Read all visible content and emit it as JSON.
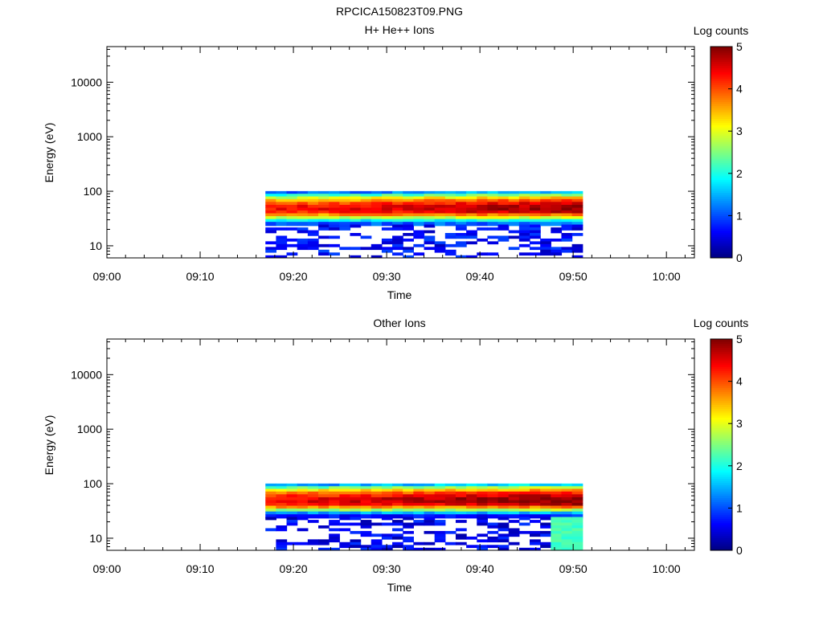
{
  "figure_title": "RPCICA150823T09.PNG",
  "colors": {
    "colormap": [
      "#00007f",
      "#0000ff",
      "#007fff",
      "#00ffff",
      "#7fff7f",
      "#ffff00",
      "#ff7f00",
      "#ff0000",
      "#7f0000"
    ]
  },
  "chart_data": [
    {
      "type": "heatmap",
      "title": "H+ He++ Ions",
      "xlabel": "Time",
      "ylabel": "Energy (eV)",
      "x_ticks": [
        "09:00",
        "09:10",
        "09:20",
        "09:30",
        "09:40",
        "09:50",
        "10:00"
      ],
      "y_ticks": [
        "10",
        "100",
        "1000",
        "10000"
      ],
      "y_scale": "log",
      "y_range_eV": [
        6,
        45000
      ],
      "x_range": [
        "09:00",
        "10:03"
      ],
      "data_time_range": [
        "09:17",
        "09:51"
      ],
      "colorbar": {
        "label": "Log counts",
        "ticks": [
          "0",
          "1",
          "2",
          "3",
          "4",
          "5"
        ],
        "range": [
          0,
          5
        ]
      },
      "profile_rows_eV": [
        95,
        85,
        76,
        68,
        60,
        53,
        47,
        42,
        37,
        33,
        29,
        26
      ],
      "profile_log_counts": [
        1.0,
        2.0,
        2.8,
        3.4,
        3.9,
        4.2,
        4.3,
        4.1,
        3.6,
        2.8,
        1.8,
        1.0
      ],
      "peak_shift_late": 0.7,
      "background_counts": 0.3
    },
    {
      "type": "heatmap",
      "title": "Other Ions",
      "xlabel": "Time",
      "ylabel": "Energy (eV)",
      "x_ticks": [
        "09:00",
        "09:10",
        "09:20",
        "09:30",
        "09:40",
        "09:50",
        "10:00"
      ],
      "y_ticks": [
        "10",
        "100",
        "1000",
        "10000"
      ],
      "y_scale": "log",
      "y_range_eV": [
        6,
        45000
      ],
      "x_range": [
        "09:00",
        "10:03"
      ],
      "data_time_range": [
        "09:17",
        "09:51"
      ],
      "colorbar": {
        "label": "Log counts",
        "ticks": [
          "0",
          "1",
          "2",
          "3",
          "4",
          "5"
        ],
        "range": [
          0,
          5
        ]
      },
      "profile_rows_eV": [
        95,
        85,
        76,
        68,
        60,
        53,
        47,
        42,
        37,
        33,
        29,
        26
      ],
      "profile_log_counts": [
        1.3,
        2.3,
        3.1,
        3.7,
        4.1,
        4.4,
        4.4,
        4.2,
        3.6,
        2.6,
        1.4,
        0.6
      ],
      "peak_shift_late": 0.6,
      "background_counts": 0.2,
      "late_feature": {
        "time_range": [
          "09:47",
          "09:51"
        ],
        "energy_eV": [
          6,
          30
        ],
        "log_counts": 2.2
      }
    }
  ]
}
